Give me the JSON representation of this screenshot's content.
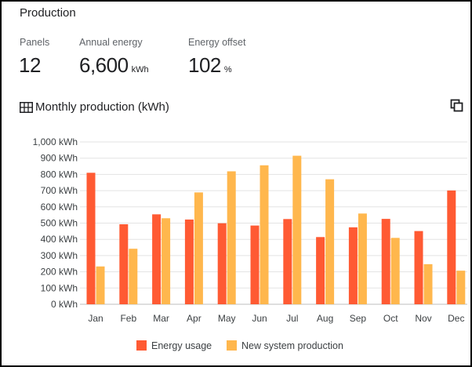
{
  "card": {
    "title": "Production"
  },
  "stats": [
    {
      "label": "Panels",
      "value": "12",
      "unit": ""
    },
    {
      "label": "Annual energy",
      "value": "6,600",
      "unit": "kWh"
    },
    {
      "label": "Energy offset",
      "value": "102",
      "unit": "%"
    }
  ],
  "chart_header": {
    "title": "Monthly production (kWh)",
    "title_icon": "grid-table-icon",
    "action_icon": "copy-icon"
  },
  "chart_data": {
    "type": "bar",
    "title": "Monthly production (kWh)",
    "categories": [
      "Jan",
      "Feb",
      "Mar",
      "Apr",
      "May",
      "Jun",
      "Jul",
      "Aug",
      "Sep",
      "Oct",
      "Nov",
      "Dec"
    ],
    "series": [
      {
        "name": "Energy usage",
        "color": "#ff5a33",
        "values": [
          810,
          493,
          554,
          522,
          499,
          485,
          525,
          414,
          474,
          526,
          451,
          701
        ]
      },
      {
        "name": "New system production",
        "color": "#ffb74d",
        "values": [
          233,
          342,
          530,
          689,
          819,
          856,
          915,
          770,
          559,
          409,
          247,
          207
        ]
      }
    ],
    "ylim": [
      0,
      1000
    ],
    "yticks": [
      "0 kWh",
      "100 kWh",
      "200 kWh",
      "300 kWh",
      "400 kWh",
      "500 kWh",
      "600 kWh",
      "700 kWh",
      "800 kWh",
      "900 kWh",
      "1,000 kWh"
    ],
    "grid": true,
    "legend": "bottom"
  }
}
